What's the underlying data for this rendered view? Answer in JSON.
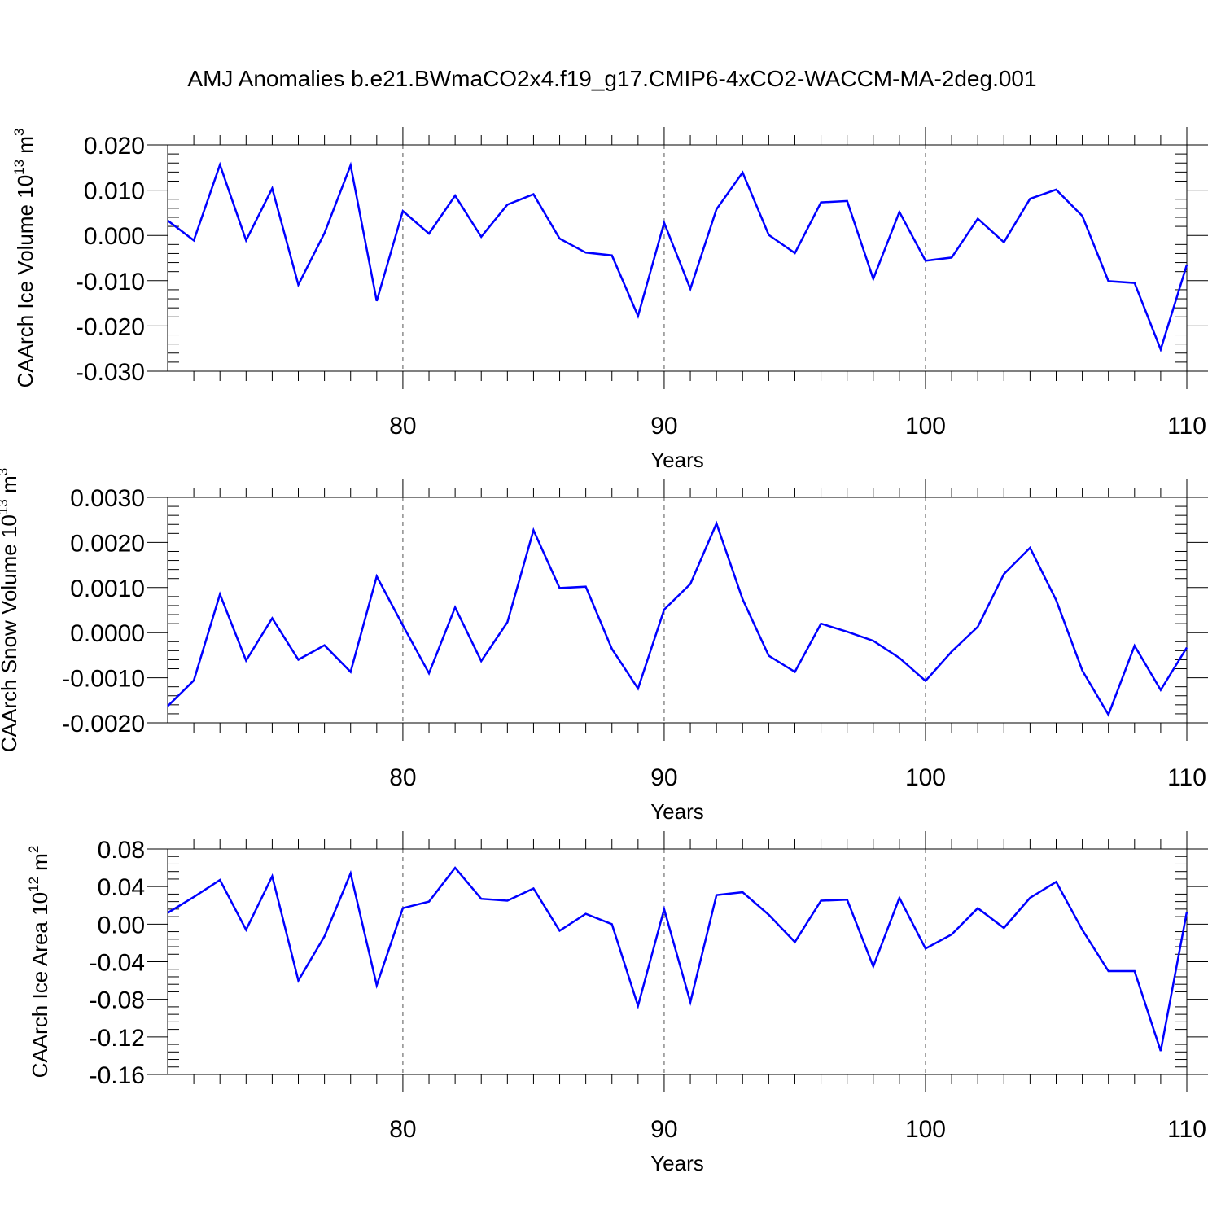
{
  "title": "AMJ Anomalies b.e21.BWmaCO2x4.f19_g17.CMIP6-4xCO2-WACCM-MA-2deg.001",
  "colors": {
    "series": "#0000ff",
    "axis": "#000000",
    "grid": "#555555"
  },
  "chart_data": [
    {
      "type": "line",
      "title": "",
      "xlabel": "Years",
      "ylabel": "CAArch Ice Volume 10",
      "ylabel_exp": "13",
      "ylabel_unit": "m",
      "ylabel_unit_exp": "3",
      "xlim": [
        71,
        110
      ],
      "ylim": [
        -0.03,
        0.02
      ],
      "xticks": [
        80,
        90,
        100,
        110
      ],
      "xtick_labels": [
        "80",
        "90",
        "100",
        "110"
      ],
      "yticks": [
        -0.03,
        -0.02,
        -0.01,
        0.0,
        0.01,
        0.02
      ],
      "ytick_labels": [
        "-0.030",
        "-0.020",
        "-0.010",
        "0.000",
        "0.010",
        "0.020"
      ],
      "grid_x": true,
      "x": [
        71,
        72,
        73,
        74,
        75,
        76,
        77,
        78,
        79,
        80,
        81,
        82,
        83,
        84,
        85,
        86,
        87,
        88,
        89,
        90,
        91,
        92,
        93,
        94,
        95,
        96,
        97,
        98,
        99,
        100,
        101,
        102,
        103,
        104,
        105,
        106,
        107,
        108,
        109,
        110
      ],
      "series": [
        {
          "values": [
            0.0033,
            -0.0011,
            0.0156,
            -0.0011,
            0.0104,
            -0.0109,
            0.0005,
            0.0155,
            -0.0145,
            0.0054,
            0.0004,
            0.0088,
            -0.0003,
            0.0068,
            0.0091,
            -0.0007,
            -0.0038,
            -0.0044,
            -0.0178,
            0.0028,
            -0.0118,
            0.0058,
            0.0139,
            0.0001,
            -0.0039,
            0.0073,
            0.0076,
            -0.0096,
            0.0052,
            -0.0056,
            -0.0049,
            0.0037,
            -0.0015,
            0.0081,
            0.0101,
            0.0043,
            -0.0101,
            -0.0105,
            -0.0252,
            -0.0065
          ]
        }
      ]
    },
    {
      "type": "line",
      "title": "",
      "xlabel": "Years",
      "ylabel": "CAArch Snow Volume 10",
      "ylabel_exp": "13",
      "ylabel_unit": "m",
      "ylabel_unit_exp": "3",
      "xlim": [
        71,
        110
      ],
      "ylim": [
        -0.002,
        0.003
      ],
      "xticks": [
        80,
        90,
        100,
        110
      ],
      "xtick_labels": [
        "80",
        "90",
        "100",
        "110"
      ],
      "yticks": [
        -0.002,
        -0.001,
        0.0,
        0.001,
        0.002,
        0.003
      ],
      "ytick_labels": [
        "-0.0020",
        "-0.0010",
        "0.0000",
        "0.0010",
        "0.0020",
        "0.0030"
      ],
      "grid_x": true,
      "x": [
        71,
        72,
        73,
        74,
        75,
        76,
        77,
        78,
        79,
        80,
        81,
        82,
        83,
        84,
        85,
        86,
        87,
        88,
        89,
        90,
        91,
        92,
        93,
        94,
        95,
        96,
        97,
        98,
        99,
        100,
        101,
        102,
        103,
        104,
        105,
        106,
        107,
        108,
        109,
        110
      ],
      "series": [
        {
          "values": [
            -0.00163,
            -0.00106,
            0.00085,
            -0.00062,
            0.00032,
            -0.0006,
            -0.00028,
            -0.00087,
            0.00125,
            0.00016,
            -0.0009,
            0.00056,
            -0.00063,
            0.00023,
            0.00227,
            0.00099,
            0.00102,
            -0.00036,
            -0.00124,
            0.00051,
            0.00108,
            0.00242,
            0.00074,
            -0.00051,
            -0.00087,
            0.0002,
            2e-05,
            -0.00018,
            -0.00056,
            -0.00107,
            -0.00042,
            0.00013,
            0.0013,
            0.00188,
            0.00072,
            -0.00084,
            -0.00182,
            -0.00029,
            -0.00127,
            -0.00033
          ]
        }
      ]
    },
    {
      "type": "line",
      "title": "",
      "xlabel": "Years",
      "ylabel": "CAArch Ice Area 10",
      "ylabel_exp": "12",
      "ylabel_unit": "m",
      "ylabel_unit_exp": "2",
      "xlim": [
        71,
        110
      ],
      "ylim": [
        -0.16,
        0.08
      ],
      "xticks": [
        80,
        90,
        100,
        110
      ],
      "xtick_labels": [
        "80",
        "90",
        "100",
        "110"
      ],
      "yticks": [
        -0.16,
        -0.12,
        -0.08,
        -0.04,
        0.0,
        0.04,
        0.08
      ],
      "ytick_labels": [
        "-0.16",
        "-0.12",
        "-0.08",
        "-0.04",
        "0.00",
        "0.04",
        "0.08"
      ],
      "grid_x": true,
      "x": [
        71,
        72,
        73,
        74,
        75,
        76,
        77,
        78,
        79,
        80,
        81,
        82,
        83,
        84,
        85,
        86,
        87,
        88,
        89,
        90,
        91,
        92,
        93,
        94,
        95,
        96,
        97,
        98,
        99,
        100,
        101,
        102,
        103,
        104,
        105,
        106,
        107,
        108,
        109,
        110
      ],
      "series": [
        {
          "values": [
            0.012,
            0.029,
            0.047,
            -0.006,
            0.051,
            -0.06,
            -0.013,
            0.054,
            -0.065,
            0.017,
            0.024,
            0.06,
            0.027,
            0.025,
            0.038,
            -0.007,
            0.011,
            0.0,
            -0.087,
            0.016,
            -0.083,
            0.031,
            0.034,
            0.01,
            -0.019,
            0.025,
            0.026,
            -0.045,
            0.028,
            -0.026,
            -0.011,
            0.017,
            -0.004,
            0.028,
            0.045,
            -0.006,
            -0.05,
            -0.05,
            -0.135,
            0.013
          ]
        }
      ]
    }
  ]
}
